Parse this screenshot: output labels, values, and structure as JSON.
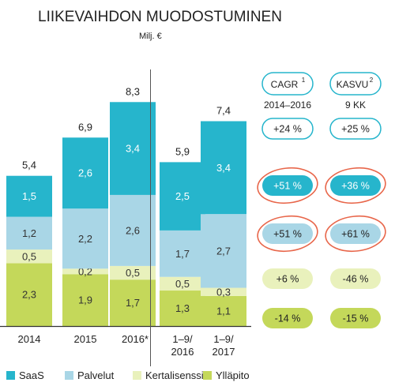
{
  "title": "LIIKEVAIHDON MUODOSTUMINEN",
  "subtitle": "Milj. €",
  "colors": {
    "saas": "#26b5cc",
    "palvelut": "#a9d6e6",
    "kertalisenssit": "#e9f1bc",
    "yllapito": "#c4d85a",
    "axis": "#333333",
    "badge_outline": "#26b5cc",
    "ring": "#e8664a"
  },
  "chart_data": {
    "type": "bar",
    "stacked": true,
    "categories": [
      "2014",
      "2015",
      "2016*",
      "1–9/\n2016",
      "1–9/\n2017"
    ],
    "totals": [
      "5,4",
      "6,9",
      "8,3",
      "5,9",
      "7,4"
    ],
    "series": [
      {
        "name": "Ylläpito",
        "color_key": "yllapito",
        "values": [
          2.3,
          1.9,
          1.7,
          1.3,
          1.1
        ],
        "labels": [
          "2,3",
          "1,9",
          "1,7",
          "1,3",
          "1,1"
        ]
      },
      {
        "name": "Kertalisenssit",
        "color_key": "kertalisenssit",
        "values": [
          0.5,
          0.2,
          0.5,
          0.5,
          0.3
        ],
        "labels": [
          "0,5",
          "0,2",
          "0,5",
          "0,5",
          "0,3"
        ]
      },
      {
        "name": "Palvelut",
        "color_key": "palvelut",
        "values": [
          1.2,
          2.2,
          2.6,
          1.7,
          2.7
        ],
        "labels": [
          "1,2",
          "2,2",
          "2,6",
          "1,7",
          "2,7"
        ]
      },
      {
        "name": "SaaS",
        "color_key": "saas",
        "values": [
          1.5,
          2.6,
          3.4,
          2.5,
          3.4
        ],
        "labels": [
          "1,5",
          "2,6",
          "3,4",
          "2,5",
          "3,4"
        ]
      }
    ],
    "legend_order": [
      "SaaS",
      "Palvelut",
      "Kertalisenssit",
      "Ylläpito"
    ],
    "legend_placement": "bottom",
    "divider_between_groups": true
  },
  "side_table": {
    "headers": [
      {
        "label": "CAGR",
        "sup": "1",
        "sub": "2014–2016"
      },
      {
        "label": "KASVU",
        "sup": "2",
        "sub": "9 KK"
      }
    ],
    "rows": [
      {
        "series": "total",
        "style": "outline",
        "ring": false,
        "cagr": "+24 %",
        "kasvu": "+25 %"
      },
      {
        "series": "SaaS",
        "style": "saas",
        "ring": true,
        "cagr": "+51 %",
        "kasvu": "+36 %"
      },
      {
        "series": "Palvelut",
        "style": "palvelut",
        "ring": true,
        "cagr": "+51 %",
        "kasvu": "+61 %"
      },
      {
        "series": "Kertalisenssit",
        "style": "kertalisenssit",
        "ring": false,
        "cagr": "+6 %",
        "kasvu": "-46 %"
      },
      {
        "series": "Ylläpito",
        "style": "yllapito",
        "ring": false,
        "cagr": "-14 %",
        "kasvu": "-15 %"
      }
    ]
  }
}
